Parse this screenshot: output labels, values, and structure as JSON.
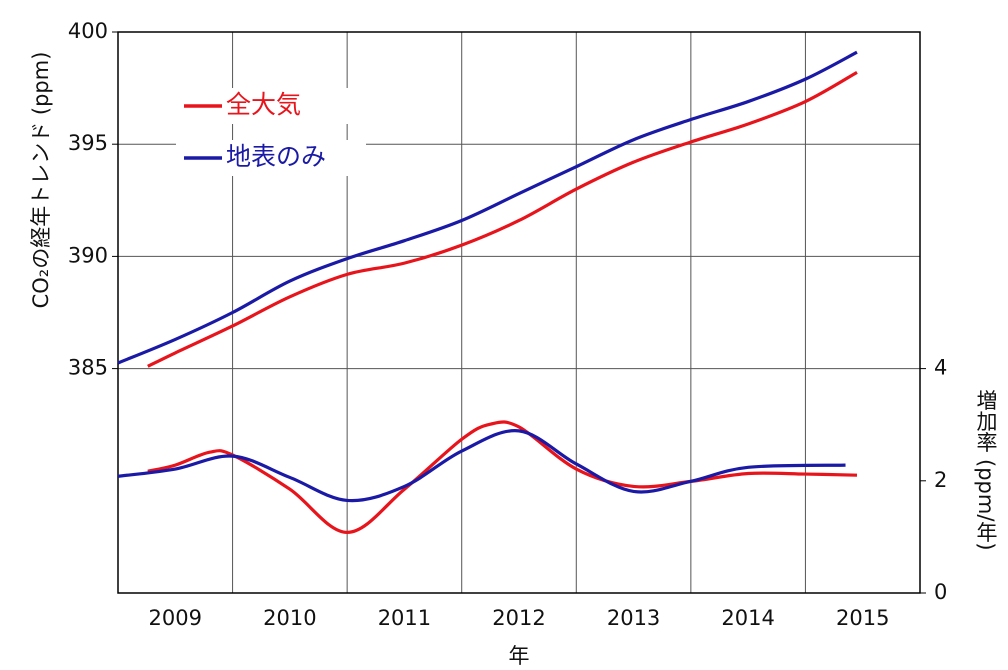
{
  "chart_data": {
    "type": "line",
    "ylabel": "CO₂の経年トレンド (ppm)",
    "y2label": "増加率 (ppm/年)",
    "xlabel": "年",
    "xlim": [
      2009,
      2016
    ],
    "xticks": [
      {
        "value": 2009.5,
        "label": "2009"
      },
      {
        "value": 2010.5,
        "label": "2010"
      },
      {
        "value": 2011.5,
        "label": "2011"
      },
      {
        "value": 2012.5,
        "label": "2012"
      },
      {
        "value": 2013.5,
        "label": "2013"
      },
      {
        "value": 2014.5,
        "label": "2014"
      },
      {
        "value": 2015.5,
        "label": "2015"
      }
    ],
    "ylim": [
      375,
      400
    ],
    "yticks": [
      385,
      390,
      395,
      400
    ],
    "y2lim": [
      0,
      10
    ],
    "y2ticks": [
      0,
      2,
      4
    ],
    "grid": true,
    "legend": "upper left",
    "series": [
      {
        "name": "全大気",
        "color": "#e8141c",
        "x": [
          2009.26,
          2009.5,
          2010,
          2010.5,
          2011,
          2011.5,
          2012,
          2012.5,
          2013,
          2013.5,
          2014,
          2014.5,
          2015,
          2015.45
        ],
        "values": [
          385.1,
          385.7,
          386.9,
          388.2,
          389.2,
          389.7,
          390.5,
          391.6,
          393.0,
          394.2,
          395.1,
          395.9,
          396.9,
          398.2
        ]
      },
      {
        "name": "地表のみ",
        "color": "#1a1aa6",
        "x": [
          2009.0,
          2009.5,
          2010,
          2010.5,
          2011,
          2011.5,
          2012,
          2012.5,
          2013,
          2013.5,
          2014,
          2014.5,
          2015,
          2015.45
        ],
        "values": [
          385.25,
          386.3,
          387.5,
          388.9,
          389.9,
          390.7,
          391.6,
          392.8,
          394.0,
          395.2,
          396.1,
          396.9,
          397.9,
          399.1
        ]
      },
      {
        "color": "#e8141c",
        "axis": "y2",
        "x": [
          2009.26,
          2009.5,
          2009.8,
          2010,
          2010.5,
          2011,
          2011.5,
          2012,
          2012.25,
          2012.5,
          2013,
          2013.5,
          2014,
          2014.5,
          2015,
          2015.45
        ],
        "values": [
          2.17,
          2.28,
          2.51,
          2.46,
          1.85,
          1.08,
          1.85,
          2.74,
          3.01,
          2.96,
          2.21,
          1.9,
          1.99,
          2.13,
          2.12,
          2.1
        ]
      },
      {
        "color": "#1a1aa6",
        "axis": "y2",
        "x": [
          2009.0,
          2009.5,
          2010,
          2010.5,
          2011,
          2011.5,
          2012,
          2012.5,
          2013,
          2013.5,
          2014,
          2014.5,
          2015.35
        ],
        "values": [
          2.08,
          2.21,
          2.44,
          2.06,
          1.65,
          1.9,
          2.53,
          2.89,
          2.3,
          1.81,
          1.99,
          2.24,
          2.28
        ]
      }
    ]
  }
}
